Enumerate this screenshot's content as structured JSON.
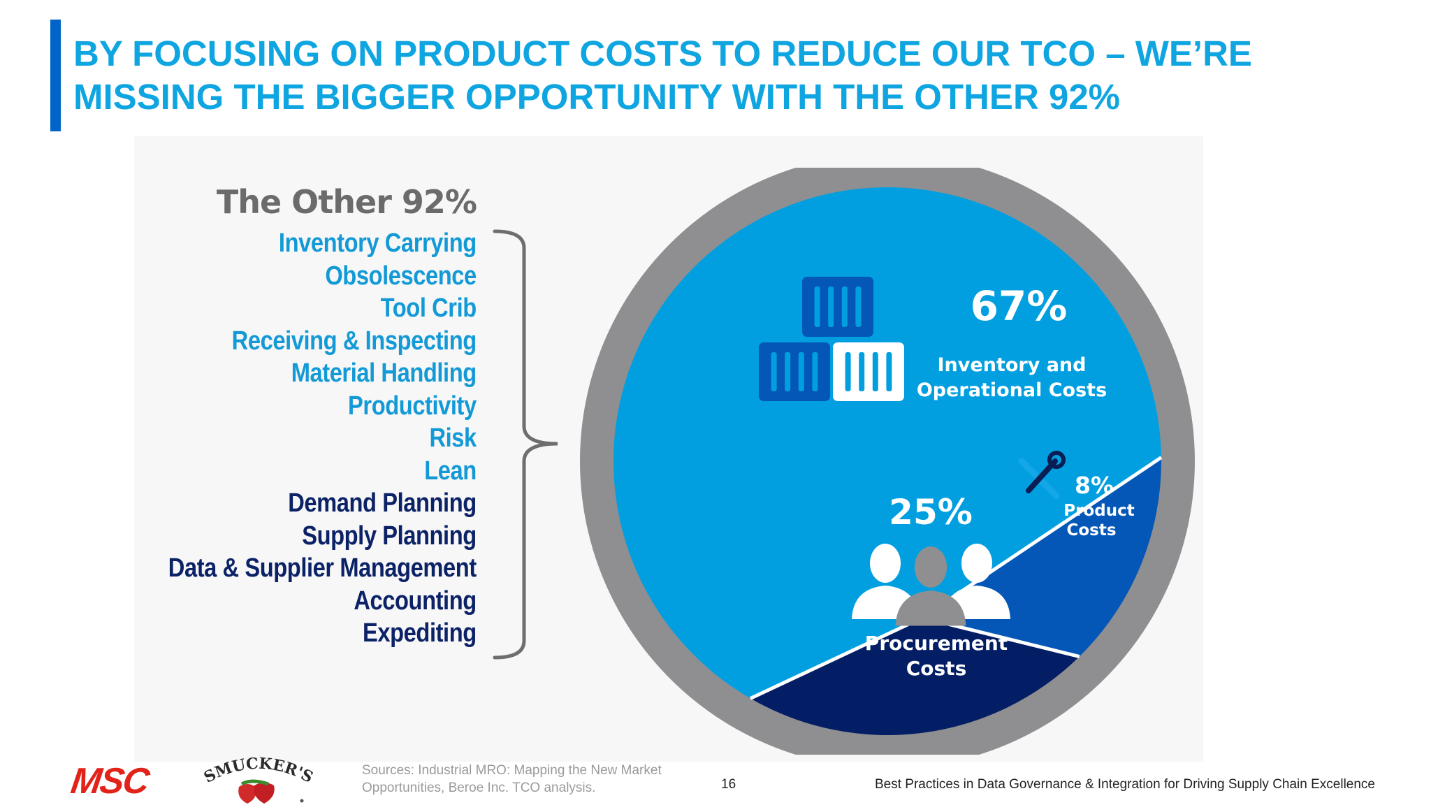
{
  "slide": {
    "title": "By focusing on product costs to reduce our TCO – we’re missing the bigger opportunity with the other 92%",
    "other_heading": "The Other 92%",
    "other_items": [
      {
        "label": "Inventory Carrying",
        "group": "inventory"
      },
      {
        "label": "Obsolescence",
        "group": "inventory"
      },
      {
        "label": "Tool Crib",
        "group": "inventory"
      },
      {
        "label": "Receiving & Inspecting",
        "group": "inventory"
      },
      {
        "label": "Material Handling",
        "group": "inventory"
      },
      {
        "label": "Productivity",
        "group": "inventory"
      },
      {
        "label": "Risk",
        "group": "inventory"
      },
      {
        "label": "Lean",
        "group": "inventory"
      },
      {
        "label": "Demand Planning",
        "group": "procurement"
      },
      {
        "label": "Supply Planning",
        "group": "procurement"
      },
      {
        "label": "Data & Supplier Management",
        "group": "procurement"
      },
      {
        "label": "Accounting",
        "group": "procurement"
      },
      {
        "label": "Expediting",
        "group": "procurement"
      }
    ]
  },
  "chart_data": {
    "type": "pie",
    "title": "",
    "slices": [
      {
        "label_lines": [
          "Inventory and",
          "Operational Costs"
        ],
        "value": 67,
        "value_label": "67%",
        "color": "#029fe0",
        "icon": "shipping-containers-icon"
      },
      {
        "label_lines": [
          "Product",
          "Costs"
        ],
        "value": 8,
        "value_label": "8%",
        "color": "#0457b7",
        "icon": "tools-icon"
      },
      {
        "label_lines": [
          "Procurement",
          "Costs"
        ],
        "value": 25,
        "value_label": "25%",
        "color": "#031e64",
        "icon": "people-icon"
      }
    ],
    "ring_color": "#8f8f91"
  },
  "colors": {
    "title": "#0ea5e0",
    "accent_bar": "#0064c8",
    "inventory_items": "#139ad6",
    "procurement_items": "#0c2266",
    "heading": "#6b6b6b"
  },
  "footer": {
    "sources": "Sources: Industrial MRO: Mapping the New Market Opportunities, Beroe Inc. TCO analysis.",
    "page_number": "16",
    "tagline": "Best Practices in Data Governance & Integration for Driving Supply Chain Excellence",
    "logo_msc": "MSC",
    "logo_smuckers": "SMUCKER'S"
  }
}
